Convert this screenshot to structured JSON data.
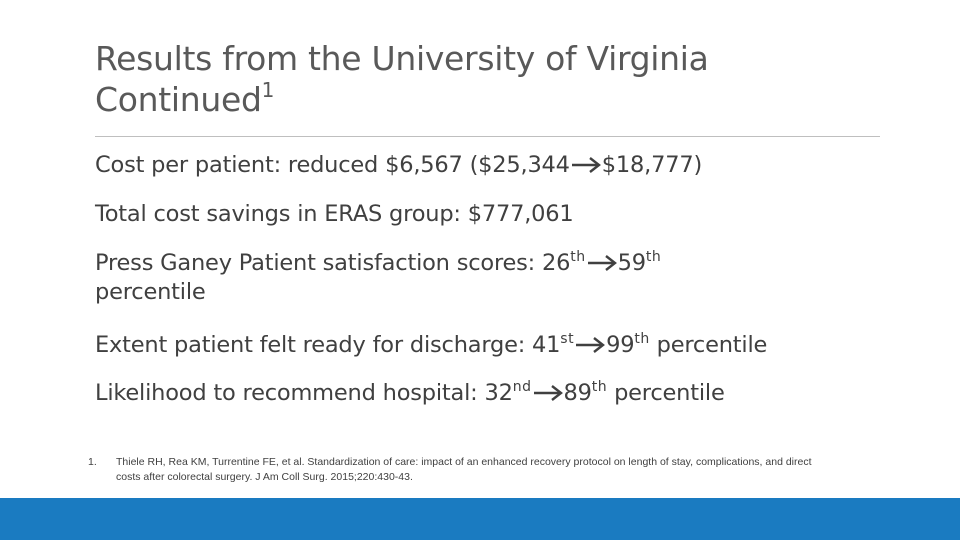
{
  "title": {
    "line1": "Results from the University of Virginia",
    "line2": "Continued",
    "superscript": "1"
  },
  "bullets": [
    {
      "before": "Cost per patient: reduced $6,567 ($25,344",
      "after": "$18,777)"
    },
    {
      "text": "Total cost savings in ERAS group: $777,061"
    },
    {
      "before": "Press Ganey Patient satisfaction scores: 26",
      "sup1": "th",
      "after": "59",
      "sup2": "th",
      "tail": "percentile"
    },
    {
      "before": "Extent patient felt ready for discharge: 41",
      "sup1": "st",
      "after": "99",
      "sup2": "th",
      "tail": " percentile"
    },
    {
      "before": "Likelihood to recommend hospital: 32",
      "sup1": "nd",
      "after": "89",
      "sup2": "th",
      "tail": " percentile"
    }
  ],
  "footnote": {
    "number": "1.",
    "text": "Thiele RH, Rea KM, Turrentine FE, et al. Standardization of care: impact of an enhanced recovery protocol on length of stay, complications, and direct costs after colorectal surgery. J Am Coll Surg. 2015;220:430-43."
  },
  "icons": {
    "arrow": "right-arrow-icon"
  },
  "colors": {
    "title": "#595959",
    "body": "#404040",
    "footer_bar": "#1a7bc1",
    "rule": "#bfbfbf"
  }
}
